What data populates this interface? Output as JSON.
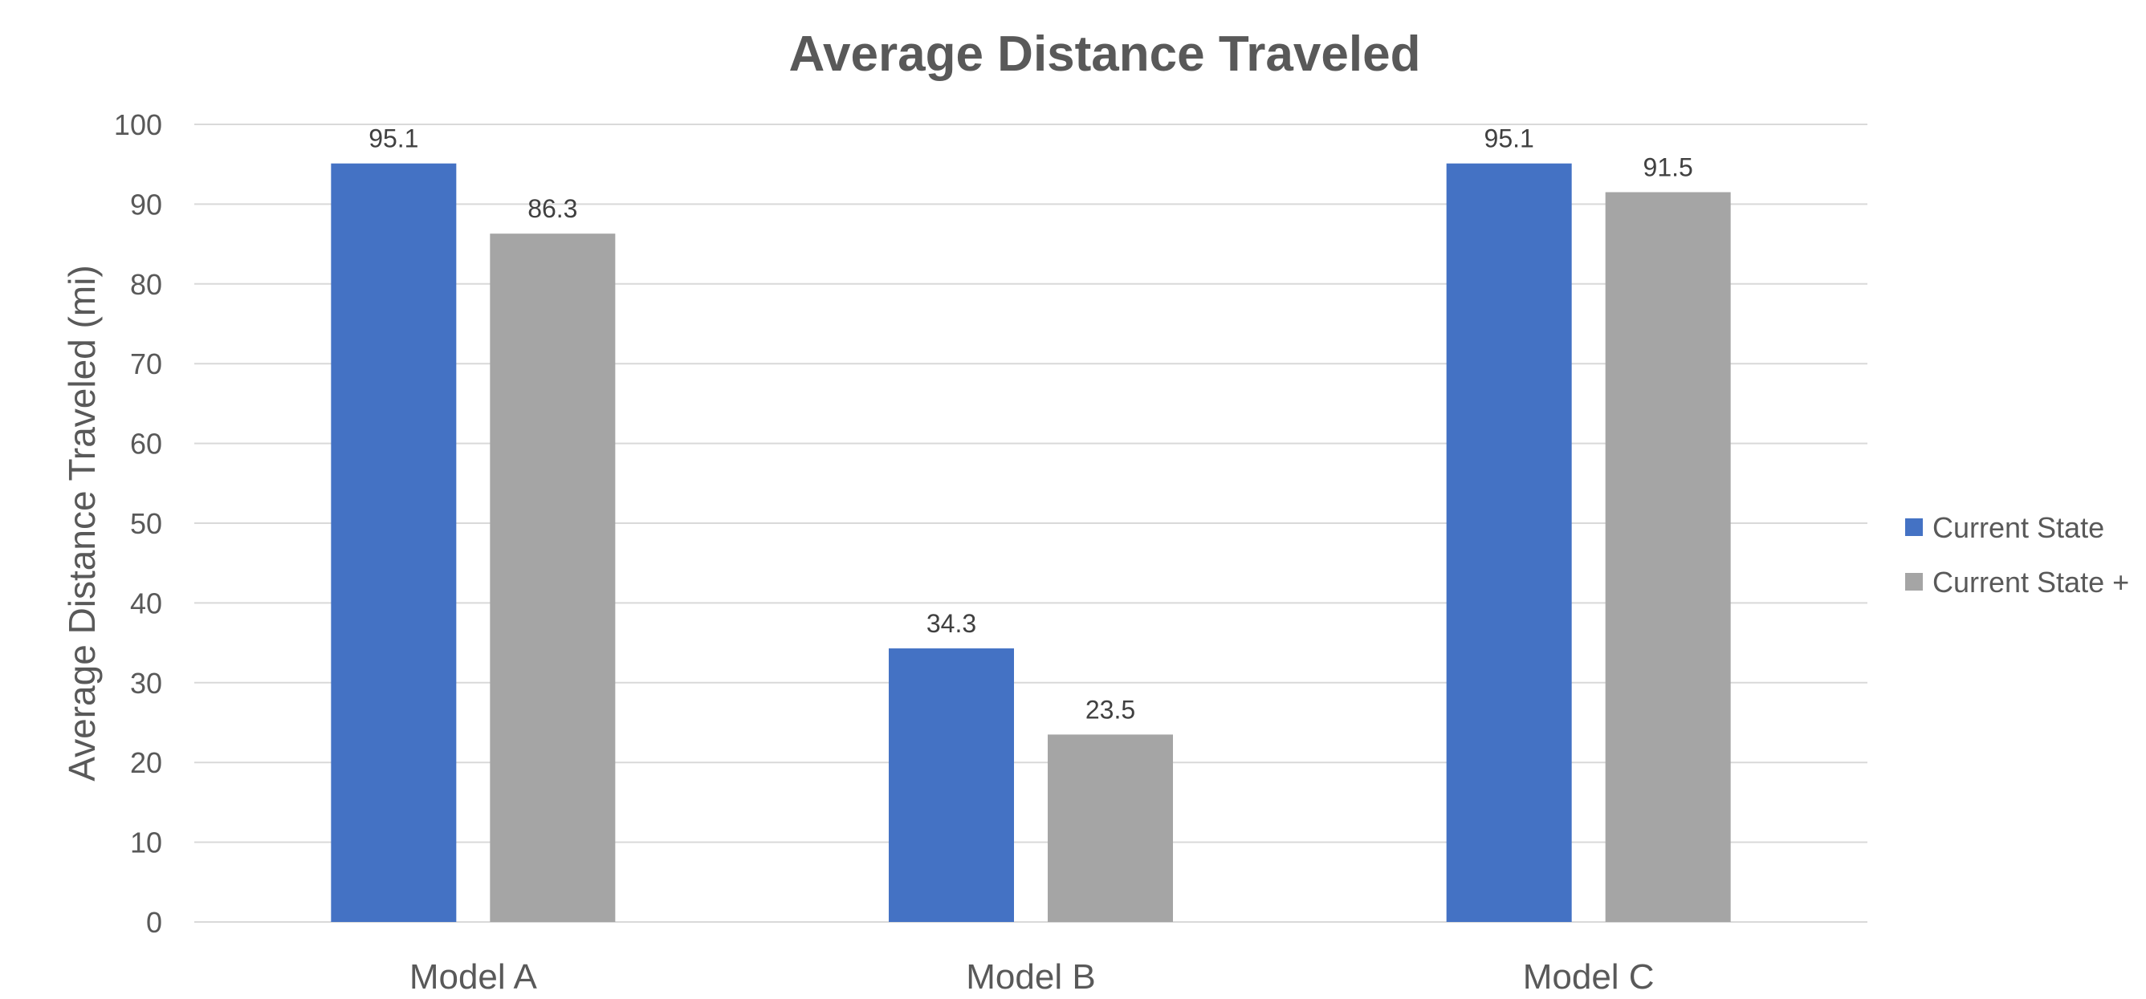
{
  "chart_data": {
    "type": "bar",
    "title": "Average Distance Traveled",
    "xlabel": "",
    "ylabel": "Average Distance Traveled (mi)",
    "categories": [
      "Model A",
      "Model B",
      "Model C"
    ],
    "series": [
      {
        "name": "Current State",
        "color": "#4472c4",
        "values": [
          95.1,
          34.3,
          95.1
        ],
        "labels": [
          "95.1",
          "34.3",
          "95.1"
        ]
      },
      {
        "name": "Current State +",
        "color": "#a5a5a5",
        "values": [
          86.3,
          23.5,
          91.5
        ],
        "labels": [
          "86.3",
          "23.5",
          "91.5"
        ]
      }
    ],
    "ylim": [
      0,
      100
    ],
    "yticks": [
      "0",
      "10",
      "20",
      "30",
      "40",
      "50",
      "60",
      "70",
      "80",
      "90",
      "100"
    ],
    "grid": true,
    "legend_position": "right"
  }
}
